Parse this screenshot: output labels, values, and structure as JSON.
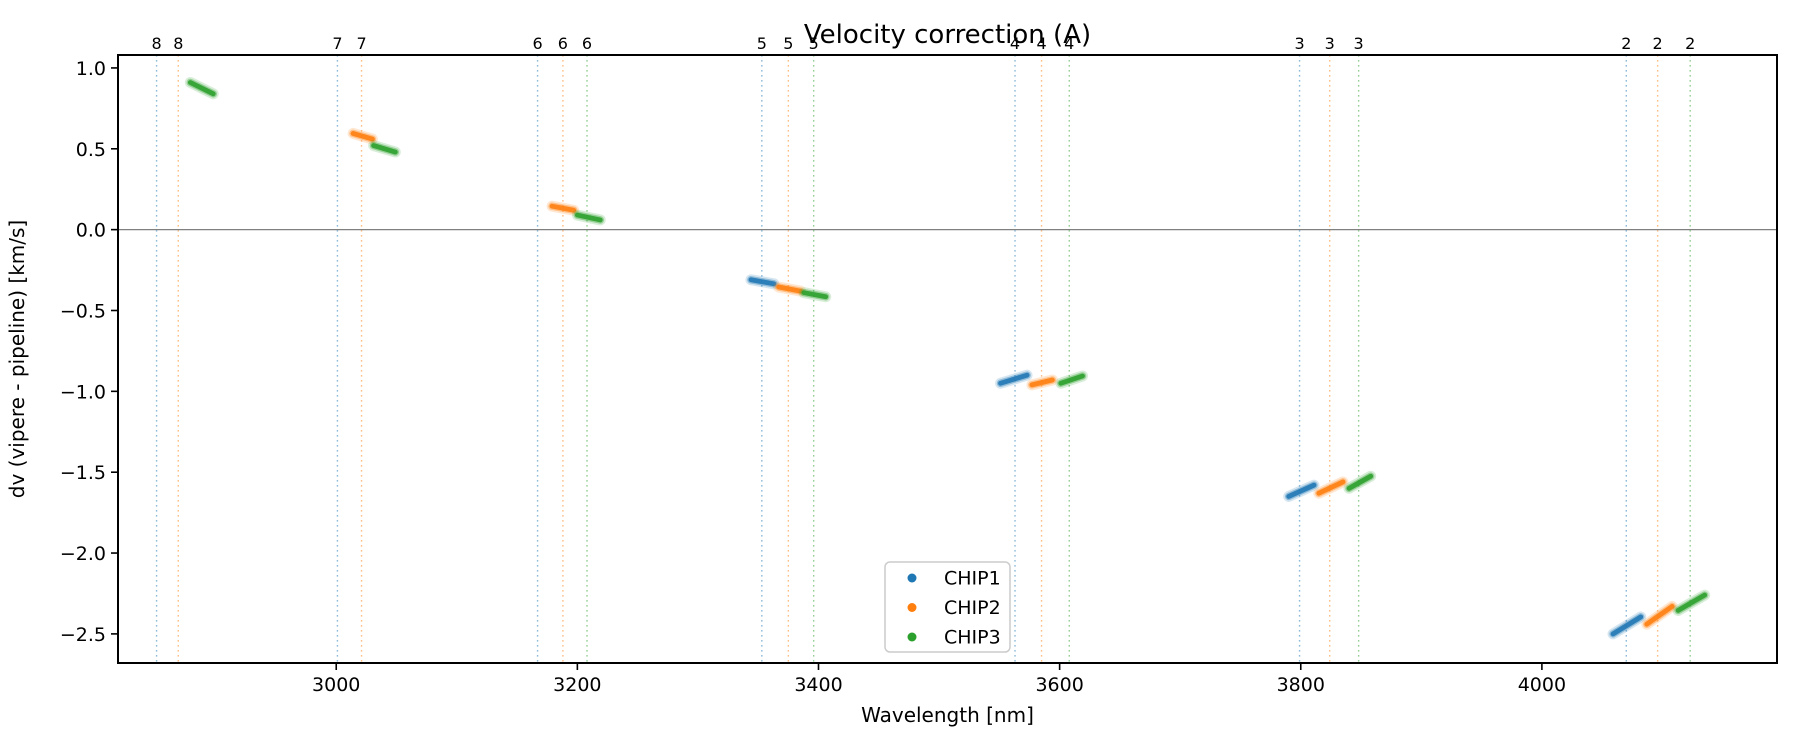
{
  "title": "Velocity correction (A)",
  "axes": {
    "xlabel": "Wavelength [nm]",
    "ylabel": "dv (vipere - pipeline) [km/s]"
  },
  "legend": {
    "entries": [
      {
        "label": "CHIP1",
        "color": "#1f77b4"
      },
      {
        "label": "CHIP2",
        "color": "#ff7f0e"
      },
      {
        "label": "CHIP3",
        "color": "#2ca02c"
      }
    ]
  },
  "chart_data": {
    "type": "scatter",
    "title": "Velocity correction (A)",
    "xlabel": "Wavelength [nm]",
    "ylabel": "dv (vipere - pipeline) [km/s]",
    "xlim": [
      2819,
      4195
    ],
    "ylim": [
      -2.68,
      1.08
    ],
    "xticks": [
      3000,
      3200,
      3400,
      3600,
      3800,
      4000
    ],
    "yticks": [
      1.0,
      0.5,
      0.0,
      -0.5,
      -1.0,
      -1.5,
      -2.0,
      -2.5
    ],
    "hline": 0,
    "grid": false,
    "legend_position": "lower center",
    "series_colors": {
      "CHIP1": "#1f77b4",
      "CHIP2": "#ff7f0e",
      "CHIP3": "#2ca02c"
    },
    "order_lines": [
      {
        "order": "8",
        "lines": [
          {
            "chip": "CHIP1",
            "x": 2851
          },
          {
            "chip": "CHIP2",
            "x": 2869
          }
        ]
      },
      {
        "order": "7",
        "lines": [
          {
            "chip": "CHIP1",
            "x": 3001
          },
          {
            "chip": "CHIP2",
            "x": 3021
          }
        ]
      },
      {
        "order": "6",
        "lines": [
          {
            "chip": "CHIP1",
            "x": 3167
          },
          {
            "chip": "CHIP2",
            "x": 3188
          },
          {
            "chip": "CHIP3",
            "x": 3208
          }
        ]
      },
      {
        "order": "5",
        "lines": [
          {
            "chip": "CHIP1",
            "x": 3353
          },
          {
            "chip": "CHIP2",
            "x": 3375
          },
          {
            "chip": "CHIP3",
            "x": 3396
          }
        ]
      },
      {
        "order": "4",
        "lines": [
          {
            "chip": "CHIP1",
            "x": 3563
          },
          {
            "chip": "CHIP2",
            "x": 3585
          },
          {
            "chip": "CHIP3",
            "x": 3608
          }
        ]
      },
      {
        "order": "3",
        "lines": [
          {
            "chip": "CHIP1",
            "x": 3799
          },
          {
            "chip": "CHIP2",
            "x": 3824
          },
          {
            "chip": "CHIP3",
            "x": 3848
          }
        ]
      },
      {
        "order": "2",
        "lines": [
          {
            "chip": "CHIP1",
            "x": 4070
          },
          {
            "chip": "CHIP2",
            "x": 4096
          },
          {
            "chip": "CHIP3",
            "x": 4123
          }
        ]
      }
    ],
    "segments": [
      {
        "order": "8",
        "chip": "CHIP3",
        "x": [
          2879,
          2898
        ],
        "y": [
          0.91,
          0.84
        ]
      },
      {
        "order": "7",
        "chip": "CHIP2",
        "x": [
          3014,
          3030
        ],
        "y": [
          0.595,
          0.56
        ]
      },
      {
        "order": "7",
        "chip": "CHIP3",
        "x": [
          3031,
          3049
        ],
        "y": [
          0.52,
          0.48
        ]
      },
      {
        "order": "6",
        "chip": "CHIP2",
        "x": [
          3179,
          3197
        ],
        "y": [
          0.145,
          0.12
        ]
      },
      {
        "order": "6",
        "chip": "CHIP3",
        "x": [
          3200,
          3219
        ],
        "y": [
          0.09,
          0.06
        ]
      },
      {
        "order": "5",
        "chip": "CHIP1",
        "x": [
          3344,
          3363
        ],
        "y": [
          -0.31,
          -0.335
        ]
      },
      {
        "order": "5",
        "chip": "CHIP2",
        "x": [
          3367,
          3385
        ],
        "y": [
          -0.355,
          -0.38
        ]
      },
      {
        "order": "5",
        "chip": "CHIP3",
        "x": [
          3388,
          3406
        ],
        "y": [
          -0.39,
          -0.415
        ]
      },
      {
        "order": "4",
        "chip": "CHIP1",
        "x": [
          3551,
          3573
        ],
        "y": [
          -0.95,
          -0.9
        ]
      },
      {
        "order": "4",
        "chip": "CHIP2",
        "x": [
          3577,
          3594
        ],
        "y": [
          -0.96,
          -0.93
        ]
      },
      {
        "order": "4",
        "chip": "CHIP3",
        "x": [
          3601,
          3619
        ],
        "y": [
          -0.95,
          -0.905
        ]
      },
      {
        "order": "3",
        "chip": "CHIP1",
        "x": [
          3790,
          3811
        ],
        "y": [
          -1.65,
          -1.58
        ]
      },
      {
        "order": "3",
        "chip": "CHIP2",
        "x": [
          3815,
          3835
        ],
        "y": [
          -1.63,
          -1.56
        ]
      },
      {
        "order": "3",
        "chip": "CHIP3",
        "x": [
          3840,
          3858
        ],
        "y": [
          -1.6,
          -1.525
        ]
      },
      {
        "order": "2",
        "chip": "CHIP1",
        "x": [
          4059,
          4082
        ],
        "y": [
          -2.5,
          -2.395
        ]
      },
      {
        "order": "2",
        "chip": "CHIP2",
        "x": [
          4087,
          4108
        ],
        "y": [
          -2.44,
          -2.33
        ]
      },
      {
        "order": "2",
        "chip": "CHIP3",
        "x": [
          4113,
          4135
        ],
        "y": [
          -2.355,
          -2.26
        ]
      }
    ]
  }
}
